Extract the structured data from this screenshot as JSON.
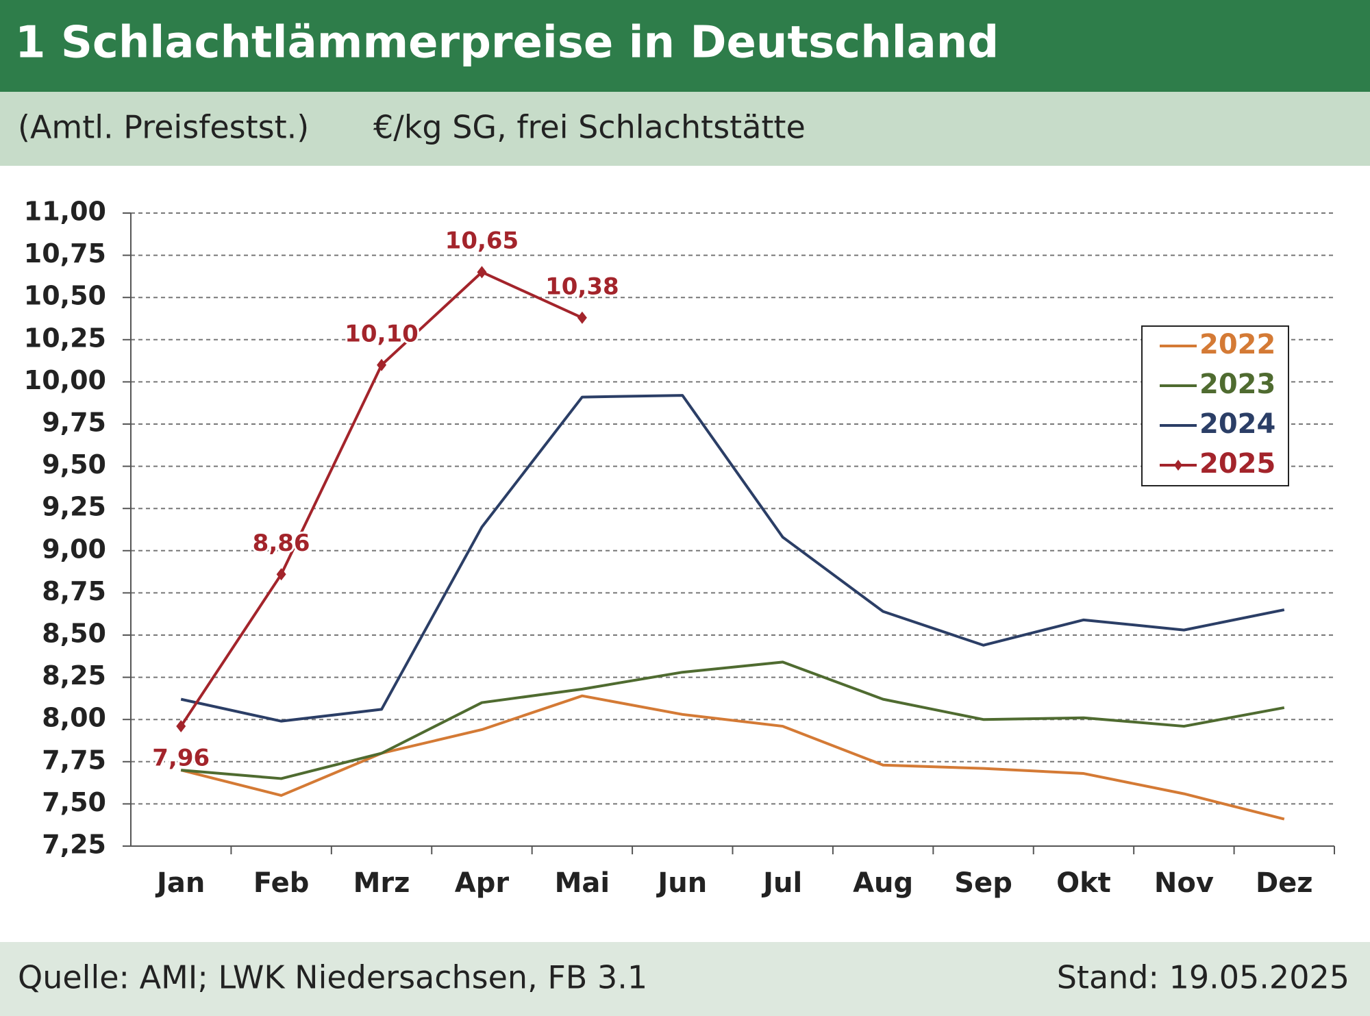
{
  "chart_data": {
    "type": "line",
    "title": "1 Schlachtlämmerpreise in Deutschland",
    "subtitle": "(Amtl. Preisfestst.)",
    "unit": "€/kg SG, frei Schlachtstätte",
    "source": "Quelle: AMI; LWK Niedersachsen, FB 3.1",
    "date": "Stand: 19.05.2025",
    "categories": [
      "Jan",
      "Feb",
      "Mrz",
      "Apr",
      "Mai",
      "Jun",
      "Jul",
      "Aug",
      "Sep",
      "Okt",
      "Nov",
      "Dez"
    ],
    "series": [
      {
        "name": "2022",
        "color": "#d47a35",
        "values": [
          7.7,
          7.55,
          7.8,
          7.94,
          8.14,
          8.03,
          7.96,
          7.73,
          7.71,
          7.68,
          7.56,
          7.41
        ]
      },
      {
        "name": "2023",
        "color": "#4f6b30",
        "values": [
          7.7,
          7.65,
          7.8,
          8.1,
          8.18,
          8.28,
          8.34,
          8.12,
          8.0,
          8.01,
          7.96,
          8.07
        ]
      },
      {
        "name": "2024",
        "color": "#2b3e66",
        "values": [
          8.12,
          7.99,
          8.06,
          9.14,
          9.91,
          9.92,
          9.08,
          8.64,
          8.44,
          8.59,
          8.53,
          8.65
        ]
      },
      {
        "name": "2025",
        "color": "#a3242b",
        "marker": true,
        "values": [
          7.96,
          8.86,
          10.1,
          10.65,
          10.38,
          null,
          null,
          null,
          null,
          null,
          null,
          null
        ],
        "value_labels": [
          "7,96",
          "8,86",
          "10,10",
          "10,65",
          "10,38",
          null,
          null,
          null,
          null,
          null,
          null,
          null
        ]
      }
    ],
    "ylim": [
      7.25,
      11.0
    ],
    "yticks": [
      {
        "value": 7.25,
        "label": "7,25"
      },
      {
        "value": 7.5,
        "label": "7,50"
      },
      {
        "value": 7.75,
        "label": "7,75"
      },
      {
        "value": 8,
        "label": "8,00"
      },
      {
        "value": 8.25,
        "label": "8,25"
      },
      {
        "value": 8.5,
        "label": "8,50"
      },
      {
        "value": 8.75,
        "label": "8,75"
      },
      {
        "value": 9,
        "label": "9,00"
      },
      {
        "value": 9.25,
        "label": "9,25"
      },
      {
        "value": 9.5,
        "label": "9,50"
      },
      {
        "value": 9.75,
        "label": "9,75"
      },
      {
        "value": 10,
        "label": "10,00"
      },
      {
        "value": 10.25,
        "label": "10,25"
      },
      {
        "value": 10.5,
        "label": "10,50"
      },
      {
        "value": 10.75,
        "label": "10,75"
      },
      {
        "value": 11,
        "label": "11,00"
      }
    ],
    "grid": true,
    "legend": "upper right"
  }
}
